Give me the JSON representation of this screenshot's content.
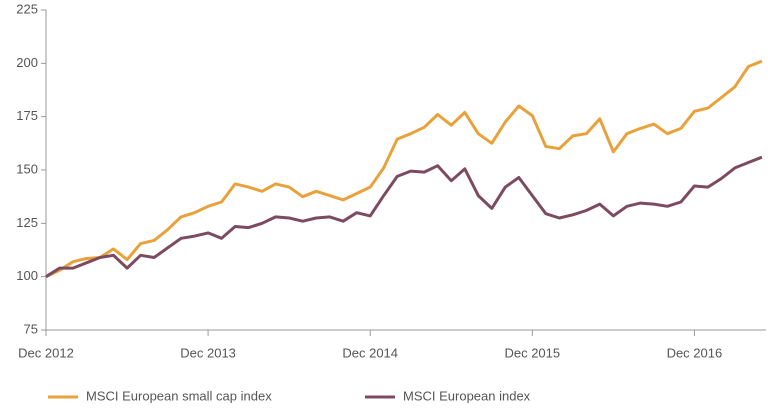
{
  "chart_data": {
    "type": "line",
    "categories": [
      "Dec 2012",
      null,
      null,
      null,
      null,
      null,
      null,
      null,
      null,
      null,
      null,
      null,
      "Dec 2013",
      null,
      null,
      null,
      null,
      null,
      null,
      null,
      null,
      null,
      null,
      null,
      "Dec 2014",
      null,
      null,
      null,
      null,
      null,
      null,
      null,
      null,
      null,
      null,
      null,
      "Dec 2015",
      null,
      null,
      null,
      null,
      null,
      null,
      null,
      null,
      null,
      null,
      null,
      "Dec 2016",
      null,
      null,
      null,
      null,
      null
    ],
    "series": [
      {
        "name": "MSCI European small cap index",
        "color": "#e9a23b",
        "values": [
          100,
          103,
          107,
          108.5,
          109,
          113,
          108,
          115.5,
          117,
          122,
          128,
          130,
          133,
          135,
          143.5,
          142,
          140,
          143.5,
          142,
          137.5,
          140,
          138,
          136,
          139,
          142,
          151,
          164.5,
          167,
          170,
          176,
          171,
          177,
          167,
          162.5,
          172.5,
          180,
          175.5,
          161,
          160,
          166,
          167,
          174,
          158.5,
          167,
          169.5,
          171.5,
          167,
          169.5,
          177.5,
          179,
          184,
          189,
          198.5,
          201
        ]
      },
      {
        "name": "MSCI European index",
        "color": "#7d4b60",
        "values": [
          100,
          104,
          104,
          106.5,
          109,
          110,
          104,
          110,
          109,
          113.5,
          118,
          119,
          120.5,
          118,
          123.5,
          123,
          125,
          128,
          127.5,
          126,
          127.5,
          128,
          126,
          130,
          128.5,
          138,
          147,
          149.5,
          149,
          152,
          145,
          150.5,
          138,
          132,
          142,
          146.5,
          138,
          129.5,
          127.5,
          129,
          131,
          134,
          128.5,
          133,
          134.5,
          134,
          133,
          135,
          142.5,
          142,
          146,
          151,
          153.5,
          156
        ]
      }
    ],
    "ylim": [
      75,
      225
    ],
    "yticks": [
      75,
      100,
      125,
      150,
      175,
      200,
      225
    ],
    "grid": false,
    "legend": "bottom"
  }
}
